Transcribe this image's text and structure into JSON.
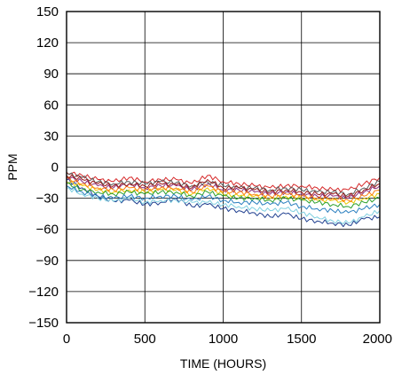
{
  "chart_data": {
    "type": "line",
    "title": "",
    "xlabel": "TIME (HOURS)",
    "ylabel": "PPM",
    "xlim": [
      0,
      2000
    ],
    "ylim": [
      -150,
      150
    ],
    "x_ticks": [
      0,
      500,
      1000,
      1500,
      2000
    ],
    "x_tick_labels": [
      "0",
      "500",
      "1000",
      "1500",
      "2000"
    ],
    "y_ticks": [
      150,
      120,
      90,
      60,
      30,
      0,
      -30,
      -60,
      -90,
      -120,
      -150
    ],
    "y_tick_labels": [
      "150",
      "120",
      "90",
      "60",
      "30",
      "0",
      "−30",
      "−60",
      "−90",
      "−120",
      "−150"
    ],
    "grid": true,
    "legend": "none",
    "x": [
      0,
      100,
      200,
      300,
      400,
      500,
      600,
      700,
      800,
      900,
      1000,
      1100,
      1200,
      1300,
      1400,
      1500,
      1600,
      1700,
      1800,
      1900,
      2000
    ],
    "series": [
      {
        "color": "#1f3f8f",
        "values": [
          -12,
          -20,
          -28,
          -33,
          -32,
          -36,
          -34,
          -30,
          -38,
          -36,
          -40,
          -42,
          -44,
          -48,
          -45,
          -50,
          -52,
          -54,
          -56,
          -50,
          -48
        ]
      },
      {
        "color": "#d62728",
        "values": [
          -5,
          -8,
          -12,
          -14,
          -10,
          -14,
          -12,
          -12,
          -16,
          -8,
          -14,
          -16,
          -18,
          -20,
          -18,
          -18,
          -20,
          -22,
          -22,
          -16,
          -10
        ]
      },
      {
        "color": "#e8c800",
        "values": [
          -14,
          -18,
          -22,
          -24,
          -22,
          -24,
          -22,
          -22,
          -26,
          -20,
          -26,
          -28,
          -28,
          -30,
          -28,
          -30,
          -32,
          -32,
          -34,
          -30,
          -26
        ]
      },
      {
        "color": "#2ca02c",
        "values": [
          -16,
          -22,
          -24,
          -26,
          -24,
          -26,
          -24,
          -24,
          -28,
          -24,
          -28,
          -30,
          -30,
          -32,
          -30,
          -32,
          -34,
          -36,
          -38,
          -34,
          -30
        ]
      },
      {
        "color": "#7ecfe0",
        "values": [
          -20,
          -26,
          -30,
          -33,
          -30,
          -34,
          -32,
          -32,
          -34,
          -34,
          -36,
          -38,
          -40,
          -42,
          -40,
          -44,
          -48,
          -52,
          -54,
          -48,
          -42
        ]
      },
      {
        "color": "#8c2d7a",
        "values": [
          -9,
          -14,
          -18,
          -20,
          -16,
          -20,
          -18,
          -18,
          -22,
          -16,
          -22,
          -22,
          -24,
          -26,
          -24,
          -26,
          -28,
          -28,
          -30,
          -24,
          -18
        ]
      },
      {
        "color": "#5a5a5a",
        "values": [
          -6,
          -10,
          -14,
          -16,
          -14,
          -16,
          -14,
          -15,
          -18,
          -14,
          -18,
          -20,
          -20,
          -22,
          -20,
          -22,
          -24,
          -24,
          -26,
          -20,
          -14
        ]
      },
      {
        "color": "#ff7f0e",
        "values": [
          -11,
          -16,
          -20,
          -22,
          -20,
          -22,
          -20,
          -20,
          -24,
          -18,
          -24,
          -24,
          -26,
          -28,
          -26,
          -28,
          -30,
          -30,
          -32,
          -28,
          -22
        ]
      },
      {
        "color": "#2a7fbf",
        "values": [
          -18,
          -24,
          -28,
          -30,
          -28,
          -30,
          -28,
          -28,
          -32,
          -28,
          -32,
          -34,
          -34,
          -36,
          -34,
          -38,
          -40,
          -42,
          -44,
          -40,
          -36
        ]
      },
      {
        "color": "#9b1b1b",
        "values": [
          -8,
          -12,
          -16,
          -18,
          -16,
          -18,
          -16,
          -17,
          -20,
          -12,
          -20,
          -20,
          -22,
          -24,
          -22,
          -24,
          -26,
          -26,
          -28,
          -22,
          -16
        ]
      }
    ]
  }
}
